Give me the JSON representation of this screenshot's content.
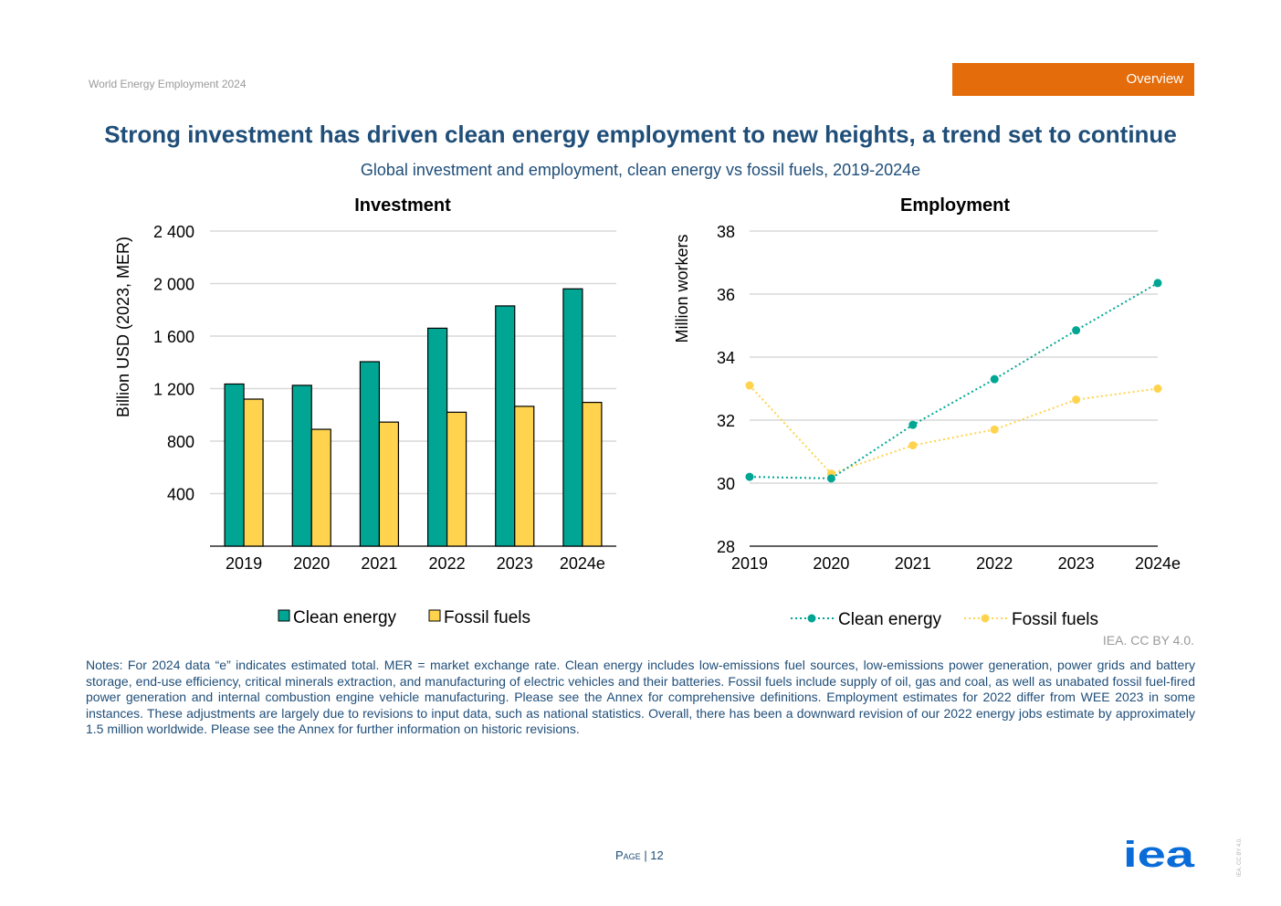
{
  "header": {
    "report_name": "World Energy Employment 2024",
    "section": "Overview"
  },
  "title": "Strong investment has driven clean energy employment to new heights, a trend set to continue",
  "subtitle": "Global investment and employment, clean energy vs fossil fuels, 2019-2024e",
  "colors": {
    "clean": "#00a693",
    "fossil": "#ffd34e",
    "title": "#1f4e79",
    "accent": "#e46c0a",
    "logo": "#0a6cd9"
  },
  "chart_data": [
    {
      "type": "bar",
      "title": "Investment",
      "ylabel": "Billion USD (2023, MER)",
      "xlabel": "",
      "ylim": [
        0,
        2400
      ],
      "yticks": [
        400,
        800,
        1200,
        1600,
        2000,
        2400
      ],
      "ytick_labels": [
        "400",
        "800",
        "1 200",
        "1 600",
        "2 000",
        "2 400"
      ],
      "categories": [
        "2019",
        "2020",
        "2021",
        "2022",
        "2023",
        "2024e"
      ],
      "series": [
        {
          "name": "Clean energy",
          "values": [
            1235,
            1225,
            1405,
            1660,
            1830,
            1960
          ]
        },
        {
          "name": "Fossil fuels",
          "values": [
            1120,
            890,
            945,
            1020,
            1065,
            1095
          ]
        }
      ],
      "grid": true,
      "legend": "bottom"
    },
    {
      "type": "line",
      "title": "Employment",
      "ylabel": "Million workers",
      "xlabel": "",
      "ylim": [
        28,
        38
      ],
      "yticks": [
        28,
        30,
        32,
        34,
        36,
        38
      ],
      "categories": [
        "2019",
        "2020",
        "2021",
        "2022",
        "2023",
        "2024e"
      ],
      "series": [
        {
          "name": "Clean energy",
          "values": [
            30.2,
            30.15,
            31.85,
            33.3,
            34.85,
            36.35
          ]
        },
        {
          "name": "Fossil fuels",
          "values": [
            33.1,
            30.3,
            31.2,
            31.7,
            32.65,
            33.0
          ]
        }
      ],
      "grid": true,
      "legend": "bottom"
    }
  ],
  "attribution": "IEA. CC BY 4.0.",
  "notes": "Notes: For 2024 data “e” indicates estimated total. MER = market exchange rate. Clean energy includes low-emissions fuel sources, low-emissions power generation, power grids and battery storage, end-use efficiency, critical minerals extraction, and manufacturing of electric vehicles and their batteries. Fossil fuels include supply of oil, gas and coal, as well as unabated fossil fuel-fired power generation and internal combustion engine vehicle manufacturing. Please see the Annex for comprehensive definitions. Employment estimates for 2022 differ from WEE 2023 in some instances. These adjustments are largely due to revisions to input data, such as national statistics. Overall, there has been a downward revision of our 2022 energy jobs estimate by approximately 1.5 million worldwide. Please see the Annex for further information on historic revisions.",
  "footer": {
    "page_label": "Page",
    "page_number": "| 12",
    "logo_text": "iea",
    "vertical_credit": "IEA. CC BY 4.0."
  }
}
